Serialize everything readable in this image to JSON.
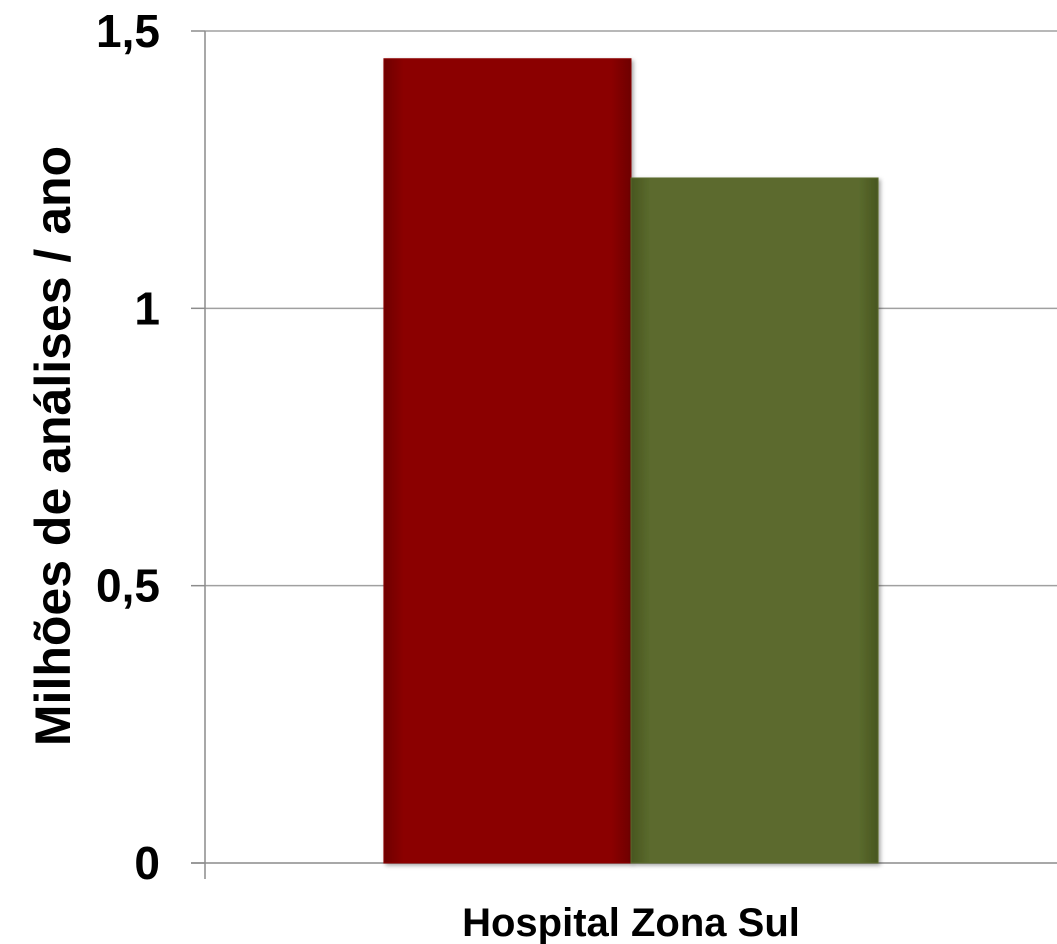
{
  "chart_data": {
    "type": "bar",
    "categories": [
      "Hospital Zona Sul"
    ],
    "series": [
      {
        "values": [
          1.45
        ],
        "color": "#8b0406"
      },
      {
        "values": [
          1.235
        ],
        "color": "#5b6b2e"
      }
    ],
    "ylabel": "Milhões de análises / ano",
    "ylim": [
      0,
      1.5
    ],
    "yticks": [
      0,
      0.5,
      1,
      1.5
    ],
    "ytick_labels": [
      "0",
      "0,5",
      "1",
      "1,5"
    ],
    "grid": true,
    "legend": "none"
  },
  "colors": {
    "gridline": "#a0a0a0",
    "axis": "#8c8c8c"
  }
}
